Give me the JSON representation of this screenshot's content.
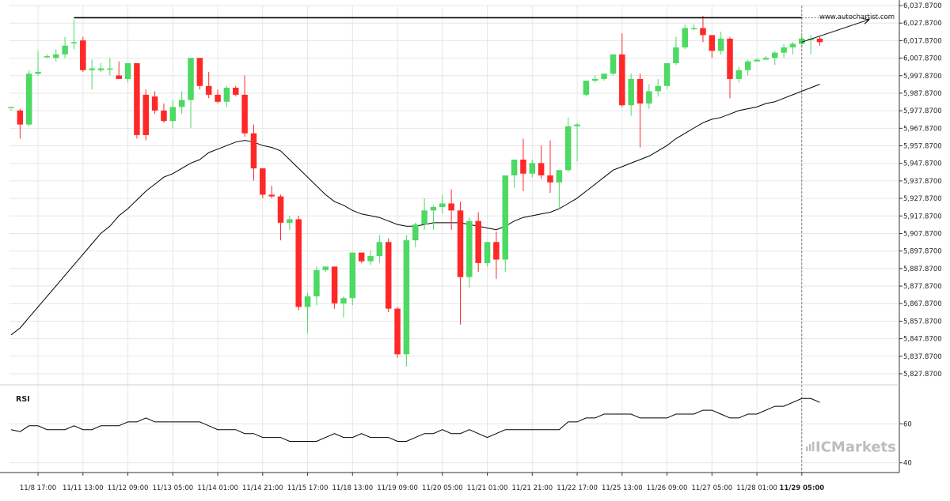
{
  "watermark": "www.autochartist.com",
  "brand": {
    "prefix": "IC",
    "name": "Markets"
  },
  "colors": {
    "up": "#4cd964",
    "down": "#ff2828",
    "line": "#000000",
    "grid": "#e6e6e6",
    "axis": "#333333",
    "brand": "#bdbdbd"
  },
  "chart_data": [
    {
      "type": "candlestick",
      "ylim": [
        5827.87,
        6037.87
      ],
      "y_ticks": [
        "5,827.8700",
        "5,837.8700",
        "5,847.8700",
        "5,857.8700",
        "5,867.8700",
        "5,877.8700",
        "5,887.8700",
        "5,897.8700",
        "5,907.8700",
        "5,917.8700",
        "5,927.8700",
        "5,937.8700",
        "5,947.8700",
        "5,957.8700",
        "5,967.8700",
        "5,977.8700",
        "5,987.8700",
        "5,997.8700",
        "6,007.8700",
        "6,017.8700",
        "6,027.8700",
        "6,037.8700"
      ],
      "x_ticks": [
        {
          "label": "11/8 17:00",
          "index": 3
        },
        {
          "label": "11/11 13:00",
          "index": 8
        },
        {
          "label": "11/12 09:00",
          "index": 13
        },
        {
          "label": "11/13 05:00",
          "index": 18
        },
        {
          "label": "11/14 01:00",
          "index": 23
        },
        {
          "label": "11/14 21:00",
          "index": 28
        },
        {
          "label": "11/15 17:00",
          "index": 33
        },
        {
          "label": "11/18 13:00",
          "index": 38
        },
        {
          "label": "11/19 09:00",
          "index": 43
        },
        {
          "label": "11/20 05:00",
          "index": 48
        },
        {
          "label": "11/21 01:00",
          "index": 53
        },
        {
          "label": "11/21 21:00",
          "index": 58
        },
        {
          "label": "11/22 17:00",
          "index": 63
        },
        {
          "label": "11/25 13:00",
          "index": 68
        },
        {
          "label": "11/26 09:00",
          "index": 73
        },
        {
          "label": "11/27 05:00",
          "index": 78
        },
        {
          "label": "11/28 01:00",
          "index": 83
        },
        {
          "label": "11/29 05:00",
          "index": 88,
          "bold": true
        }
      ],
      "candles": [
        [
          5980,
          5980,
          5978,
          5979
        ],
        [
          5978,
          5970,
          5962,
          5979
        ],
        [
          5970,
          5999,
          5969,
          6001
        ],
        [
          5999,
          6000,
          5998,
          6012
        ],
        [
          6009,
          6009,
          6008,
          6010
        ],
        [
          6008,
          6010,
          6006,
          6013
        ],
        [
          6010,
          6015,
          6008,
          6020
        ],
        [
          6017,
          6017,
          6013,
          6030
        ],
        [
          6018,
          6001,
          6000,
          6020
        ],
        [
          6001,
          6002,
          5990,
          6007
        ],
        [
          6001,
          6002,
          6000,
          6005
        ],
        [
          6002,
          6002,
          5998,
          6008
        ],
        [
          5998,
          5996,
          5996,
          6006
        ],
        [
          5996,
          6005,
          5994,
          6005
        ],
        [
          6005,
          5964,
          5962,
          6005
        ],
        [
          5987,
          5964,
          5961,
          5990
        ],
        [
          5986,
          5978,
          5976,
          5989
        ],
        [
          5978,
          5972,
          5971,
          5982
        ],
        [
          5972,
          5980,
          5968,
          5984
        ],
        [
          5980,
          5984,
          5976,
          5989
        ],
        [
          5984,
          6008,
          5968,
          6008
        ],
        [
          6008,
          5992,
          5990,
          6008
        ],
        [
          5992,
          5987,
          5985,
          6000
        ],
        [
          5987,
          5983,
          5982,
          5990
        ],
        [
          5983,
          5991,
          5980,
          5992
        ],
        [
          5991,
          5987,
          5986,
          5992
        ],
        [
          5987,
          5965,
          5963,
          5998
        ],
        [
          5965,
          5945,
          5938,
          5970
        ],
        [
          5945,
          5930,
          5928,
          5945
        ],
        [
          5930,
          5929,
          5928,
          5935
        ],
        [
          5929,
          5914,
          5904,
          5930
        ],
        [
          5914,
          5916,
          5910,
          5918
        ],
        [
          5916,
          5866,
          5864,
          5918
        ],
        [
          5866,
          5872,
          5851,
          5874
        ],
        [
          5872,
          5887,
          5867,
          5889
        ],
        [
          5887,
          5889,
          5886,
          5889
        ],
        [
          5889,
          5868,
          5865,
          5889
        ],
        [
          5868,
          5871,
          5860,
          5872
        ],
        [
          5871,
          5897,
          5867,
          5897
        ],
        [
          5897,
          5892,
          5891,
          5897
        ],
        [
          5892,
          5895,
          5890,
          5898
        ],
        [
          5895,
          5903,
          5891,
          5907
        ],
        [
          5903,
          5865,
          5863,
          5905
        ],
        [
          5865,
          5839,
          5837,
          5866
        ],
        [
          5839,
          5904,
          5832,
          5907
        ],
        [
          5904,
          5913,
          5900,
          5914
        ],
        [
          5913,
          5921,
          5910,
          5928
        ],
        [
          5921,
          5923,
          5910,
          5924
        ],
        [
          5923,
          5925,
          5919,
          5930
        ],
        [
          5925,
          5921,
          5910,
          5933
        ],
        [
          5921,
          5883,
          5856,
          5926
        ],
        [
          5883,
          5915,
          5877,
          5917
        ],
        [
          5915,
          5891,
          5886,
          5920
        ],
        [
          5891,
          5903,
          5889,
          5903
        ],
        [
          5903,
          5893,
          5882,
          5909
        ],
        [
          5893,
          5941,
          5886,
          5941
        ],
        [
          5941,
          5950,
          5934,
          5950
        ],
        [
          5950,
          5942,
          5932,
          5962
        ],
        [
          5942,
          5948,
          5940,
          5950
        ],
        [
          5948,
          5941,
          5939,
          5958
        ],
        [
          5941,
          5937,
          5931,
          5961
        ],
        [
          5937,
          5944,
          5922,
          5944
        ],
        [
          5944,
          5969,
          5943,
          5974
        ],
        [
          5969,
          5970,
          5949,
          5971
        ],
        [
          5987,
          5995,
          5986,
          5995
        ],
        [
          5995,
          5996,
          5994,
          5998
        ],
        [
          5996,
          5999,
          5995,
          5999
        ],
        [
          5999,
          6010,
          5998,
          6010
        ],
        [
          6010,
          5981,
          5980,
          6022
        ],
        [
          5981,
          5996,
          5975,
          5999
        ],
        [
          5996,
          5982,
          5957,
          5999
        ],
        [
          5982,
          5989,
          5979,
          5993
        ],
        [
          5989,
          5992,
          5986,
          5996
        ],
        [
          5992,
          6005,
          5990,
          6005
        ],
        [
          6005,
          6014,
          6004,
          6020
        ],
        [
          6014,
          6025,
          6013,
          6027
        ],
        [
          6025,
          6025,
          6024,
          6027
        ],
        [
          6025,
          6021,
          6017,
          6032
        ],
        [
          6021,
          6012,
          6008,
          6021
        ],
        [
          6012,
          6019,
          6010,
          6023
        ],
        [
          6019,
          5996,
          5985,
          6020
        ],
        [
          5996,
          6001,
          5994,
          6003
        ],
        [
          6001,
          6006,
          5998,
          6007
        ],
        [
          6006,
          6007,
          6006,
          6008
        ],
        [
          6007,
          6008,
          6007,
          6009
        ],
        [
          6008,
          6011,
          6004,
          6012
        ],
        [
          6011,
          6014,
          6008,
          6016
        ],
        [
          6014,
          6016,
          6010,
          6017
        ],
        [
          6016,
          6019,
          6014,
          6021
        ],
        [
          6019,
          6019,
          6010,
          6021
        ],
        [
          6019,
          6017,
          6015,
          6020
        ]
      ],
      "moving_average": [
        5850,
        5854,
        5860,
        5866,
        5872,
        5878,
        5884,
        5890,
        5896,
        5902,
        5908,
        5912,
        5918,
        5922,
        5927,
        5932,
        5936,
        5940,
        5942,
        5945,
        5948,
        5950,
        5954,
        5956,
        5958,
        5960,
        5961,
        5960,
        5958,
        5957,
        5955,
        5950,
        5945,
        5940,
        5935,
        5930,
        5926,
        5924,
        5921,
        5919,
        5918,
        5917,
        5915,
        5913,
        5912,
        5912,
        5913,
        5914,
        5914,
        5914,
        5914,
        5913,
        5912,
        5911,
        5910,
        5912,
        5915,
        5917,
        5918,
        5919,
        5920,
        5922,
        5925,
        5928,
        5932,
        5936,
        5940,
        5944,
        5946,
        5948,
        5950,
        5952,
        5955,
        5958,
        5962,
        5965,
        5968,
        5971,
        5973,
        5974,
        5976,
        5978,
        5979,
        5980,
        5982,
        5983,
        5985,
        5987,
        5989,
        5991,
        5993
      ],
      "resistance": {
        "value": 6030.9,
        "from_index": 7,
        "to_index": 88
      },
      "forecast": {
        "from_index": 88,
        "from_value": 6017,
        "to_index": 95.5,
        "to_value": 6029.9
      },
      "current_index": 88
    },
    {
      "type": "line",
      "title": "RSI",
      "ylim": [
        35,
        80
      ],
      "y_ticks": [
        40,
        60
      ],
      "values": [
        57,
        56,
        59,
        59,
        57,
        57,
        57,
        59,
        57,
        57,
        59,
        59,
        59,
        61,
        61,
        63,
        61,
        61,
        61,
        61,
        61,
        61,
        59,
        57,
        57,
        57,
        55,
        55,
        53,
        53,
        53,
        51,
        51,
        51,
        51,
        53,
        55,
        53,
        53,
        55,
        53,
        53,
        53,
        51,
        51,
        53,
        55,
        55,
        57,
        55,
        55,
        57,
        55,
        53,
        55,
        57,
        57,
        57,
        57,
        57,
        57,
        57,
        61,
        61,
        63,
        63,
        65,
        65,
        65,
        65,
        63,
        63,
        63,
        63,
        65,
        65,
        65,
        67,
        67,
        65,
        63,
        63,
        65,
        65,
        67,
        69,
        69,
        71,
        73,
        73,
        71
      ]
    }
  ]
}
